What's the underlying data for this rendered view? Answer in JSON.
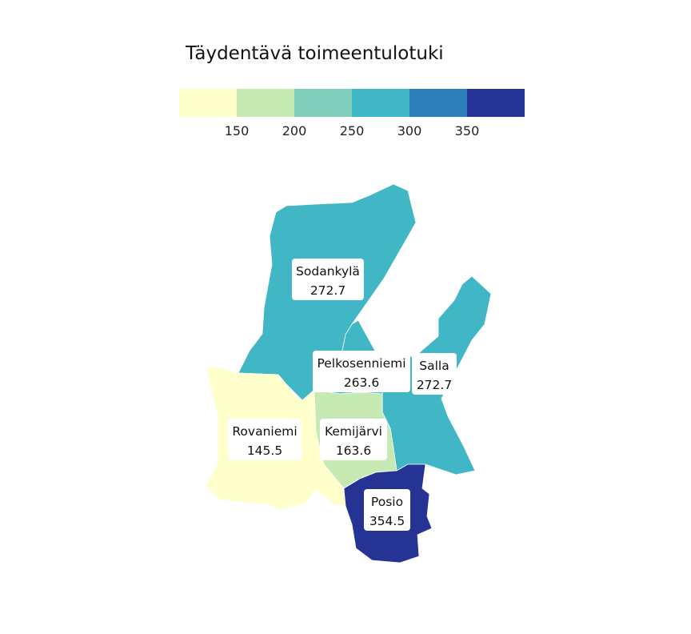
{
  "title": "Täydentävä toimeentulotuki",
  "legend": {
    "colors": [
      "#ffffcc",
      "#c7e9b4",
      "#7fcdbb",
      "#41b6c4",
      "#2c7fb8",
      "#253494"
    ],
    "ticks": [
      "150",
      "200",
      "250",
      "300",
      "350"
    ]
  },
  "regions": [
    {
      "name": "Sodankylä",
      "value": "272.7",
      "color": "#41b6c4"
    },
    {
      "name": "Salla",
      "value": "272.7",
      "color": "#41b6c4"
    },
    {
      "name": "Pelkosenniemi",
      "value": "263.6",
      "color": "#41b6c4"
    },
    {
      "name": "Rovaniemi",
      "value": "145.5",
      "color": "#ffffcc"
    },
    {
      "name": "Kemijärvi",
      "value": "163.6",
      "color": "#c7e9b4"
    },
    {
      "name": "Posio",
      "value": "354.5",
      "color": "#253494"
    }
  ]
}
